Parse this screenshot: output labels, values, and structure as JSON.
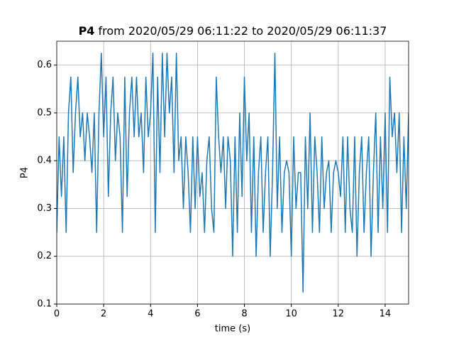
{
  "chart_data": {
    "type": "line",
    "title": [
      "P4",
      " from 2020/05/29 06:11:22 to 2020/05/29 06:11:37"
    ],
    "xlabel": "time (s)",
    "ylabel": "P4",
    "x": [
      0.0,
      0.1,
      0.2,
      0.3,
      0.4,
      0.5,
      0.6,
      0.7,
      0.8,
      0.9,
      1.0,
      1.1,
      1.2,
      1.3,
      1.4,
      1.5,
      1.6,
      1.7,
      1.8,
      1.9,
      2.0,
      2.1,
      2.2,
      2.3,
      2.4,
      2.5,
      2.6,
      2.7,
      2.8,
      2.9,
      3.0,
      3.1,
      3.2,
      3.3,
      3.4,
      3.5,
      3.6,
      3.7,
      3.8,
      3.9,
      4.0,
      4.1,
      4.2,
      4.3,
      4.4,
      4.5,
      4.6,
      4.7,
      4.8,
      4.9,
      5.0,
      5.1,
      5.2,
      5.3,
      5.4,
      5.5,
      5.6,
      5.7,
      5.8,
      5.9,
      6.0,
      6.1,
      6.2,
      6.3,
      6.4,
      6.5,
      6.6,
      6.7,
      6.8,
      6.9,
      7.0,
      7.1,
      7.2,
      7.3,
      7.4,
      7.5,
      7.6,
      7.7,
      7.8,
      7.9,
      8.0,
      8.1,
      8.2,
      8.3,
      8.4,
      8.5,
      8.6,
      8.7,
      8.8,
      8.9,
      9.0,
      9.1,
      9.2,
      9.3,
      9.4,
      9.5,
      9.6,
      9.7,
      9.8,
      9.9,
      10.0,
      10.1,
      10.2,
      10.3,
      10.4,
      10.5,
      10.6,
      10.7,
      10.8,
      10.9,
      11.0,
      11.1,
      11.2,
      11.3,
      11.4,
      11.5,
      11.6,
      11.7,
      11.8,
      11.9,
      12.0,
      12.1,
      12.2,
      12.3,
      12.4,
      12.5,
      12.6,
      12.7,
      12.8,
      12.9,
      13.0,
      13.1,
      13.2,
      13.3,
      13.4,
      13.5,
      13.6,
      13.7,
      13.8,
      13.9,
      14.0,
      14.1,
      14.2,
      14.3,
      14.4,
      14.5,
      14.6,
      14.7,
      14.8,
      14.9,
      15.0
    ],
    "values": [
      0.25,
      0.45,
      0.325,
      0.45,
      0.25,
      0.5,
      0.575,
      0.375,
      0.5,
      0.575,
      0.45,
      0.5,
      0.4,
      0.5,
      0.45,
      0.375,
      0.5,
      0.25,
      0.5,
      0.625,
      0.45,
      0.575,
      0.325,
      0.5,
      0.575,
      0.4,
      0.5,
      0.45,
      0.25,
      0.575,
      0.325,
      0.5,
      0.575,
      0.45,
      0.575,
      0.45,
      0.5,
      0.375,
      0.575,
      0.45,
      0.5,
      0.625,
      0.25,
      0.575,
      0.375,
      0.625,
      0.45,
      0.625,
      0.5,
      0.575,
      0.375,
      0.625,
      0.4,
      0.45,
      0.3,
      0.45,
      0.375,
      0.25,
      0.45,
      0.3,
      0.45,
      0.325,
      0.375,
      0.25,
      0.4,
      0.45,
      0.3,
      0.25,
      0.575,
      0.45,
      0.375,
      0.45,
      0.3,
      0.45,
      0.4,
      0.2,
      0.45,
      0.25,
      0.5,
      0.325,
      0.575,
      0.4,
      0.5,
      0.25,
      0.45,
      0.2,
      0.375,
      0.45,
      0.25,
      0.375,
      0.45,
      0.2,
      0.375,
      0.625,
      0.3,
      0.45,
      0.25,
      0.375,
      0.4,
      0.375,
      0.2,
      0.45,
      0.3,
      0.375,
      0.375,
      0.125,
      0.45,
      0.3,
      0.5,
      0.25,
      0.45,
      0.375,
      0.25,
      0.45,
      0.3,
      0.375,
      0.4,
      0.25,
      0.375,
      0.4,
      0.375,
      0.325,
      0.45,
      0.25,
      0.45,
      0.3,
      0.25,
      0.45,
      0.2,
      0.375,
      0.45,
      0.25,
      0.375,
      0.45,
      0.2,
      0.375,
      0.5,
      0.25,
      0.45,
      0.3,
      0.5,
      0.25,
      0.575,
      0.45,
      0.5,
      0.375,
      0.5,
      0.25,
      0.45,
      0.3,
      0.5
    ],
    "color": "#1f77b4",
    "xlim": [
      0,
      15
    ],
    "ylim": [
      0.1,
      0.65
    ],
    "xticks": [
      0,
      2,
      4,
      6,
      8,
      10,
      12,
      14
    ],
    "yticks": [
      0.1,
      0.2,
      0.3,
      0.4,
      0.5,
      0.6
    ],
    "grid": true
  }
}
